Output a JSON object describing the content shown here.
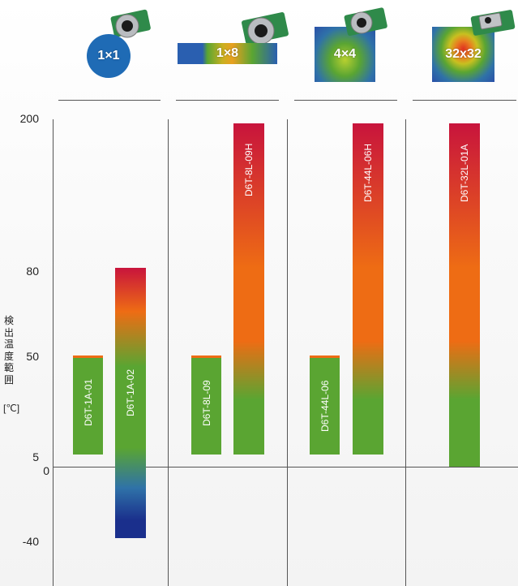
{
  "header": {
    "groups": [
      {
        "badge": "1×1",
        "resolution_icon": "single-pixel-circle-icon"
      },
      {
        "badge": "1×8",
        "resolution_icon": "eight-pixel-strip-icon"
      },
      {
        "badge": "4×4",
        "resolution_icon": "four-by-four-grid-icon"
      },
      {
        "badge": "32x32",
        "resolution_icon": "thermal-human-image-icon"
      }
    ]
  },
  "chart_data": {
    "type": "bar",
    "ylabel": "検出温度範囲",
    "yunit": "[℃]",
    "ytick_labels": [
      "200",
      "80",
      "50",
      "5",
      "0",
      "-40"
    ],
    "series": [
      {
        "name": "D6T-1A-01",
        "group": "1×1",
        "low": 5,
        "high": 50
      },
      {
        "name": "D6T-1A-02",
        "group": "1×1",
        "low": -40,
        "high": 80
      },
      {
        "name": "D6T-8L-09",
        "group": "1×8",
        "low": 5,
        "high": 50
      },
      {
        "name": "D6T-8L-09H",
        "group": "1×8",
        "low": 5,
        "high": 200
      },
      {
        "name": "D6T-44L-06",
        "group": "4×4",
        "low": 5,
        "high": 50
      },
      {
        "name": "D6T-44L-06H",
        "group": "4×4",
        "low": 5,
        "high": 200
      },
      {
        "name": "D6T-32L-01A",
        "group": "32x32",
        "low": 0,
        "high": 200
      }
    ],
    "colors": {
      "cold": "#1a2f8c",
      "cool": "#2f72a8",
      "green": "#5aa532",
      "yellow": "#c8a020",
      "orange": "#ee6c14",
      "red": "#c8143c"
    }
  }
}
